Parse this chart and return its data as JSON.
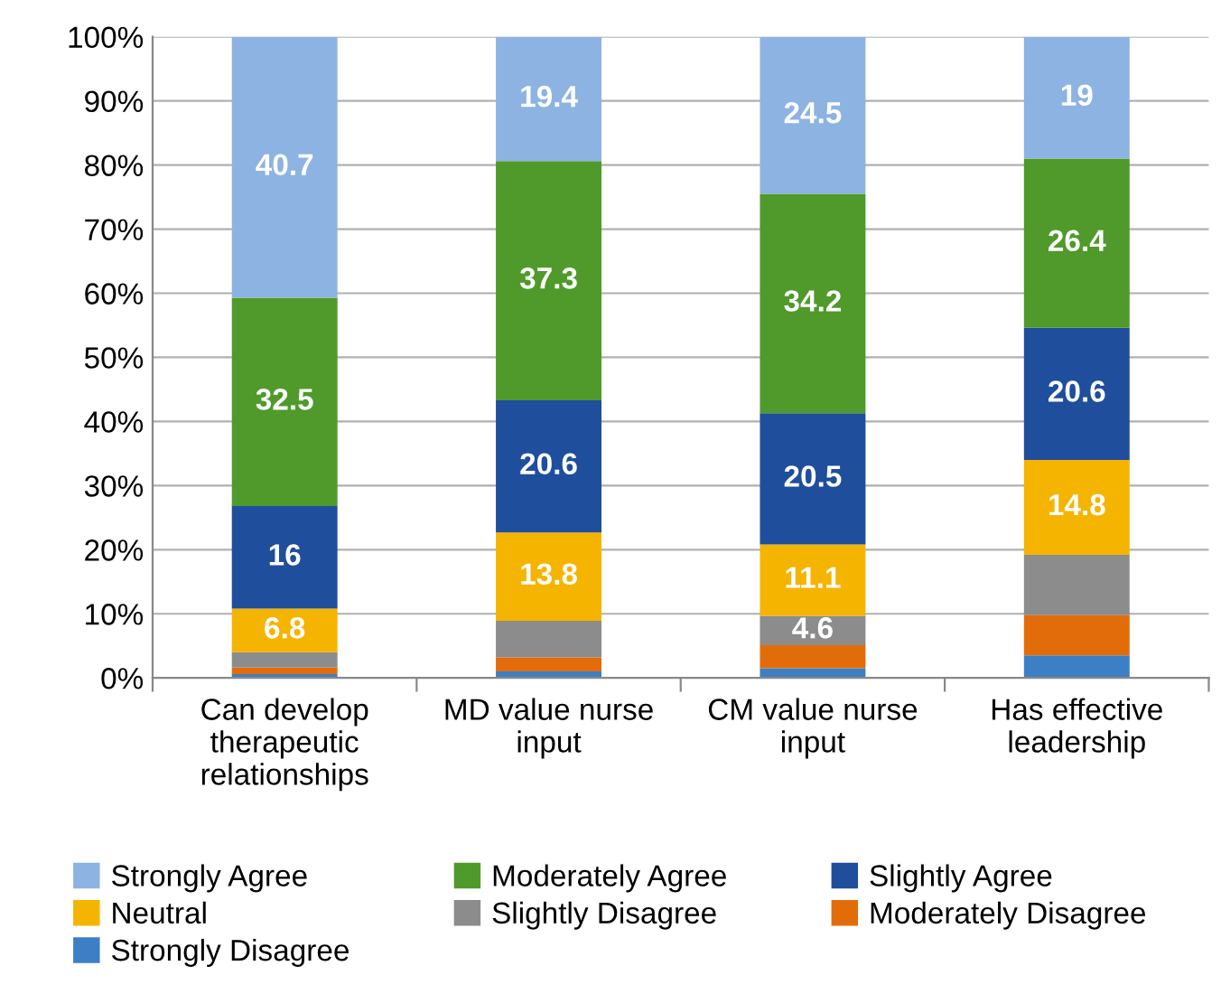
{
  "chart_data": {
    "type": "bar",
    "stacked": true,
    "categories": [
      "Can develop therapeutic relationships",
      "MD value nurse input",
      "CM value nurse input",
      "Has effective leadership"
    ],
    "series": [
      {
        "name": "Strongly Disagree",
        "color": "#3c7fc4",
        "values": [
          0.6,
          1.0,
          1.5,
          3.5
        ],
        "value_labels": [
          null,
          null,
          null,
          null
        ]
      },
      {
        "name": "Moderately Disagree",
        "color": "#e36c0a",
        "values": [
          1.0,
          2.2,
          3.6,
          6.3
        ],
        "value_labels": [
          null,
          null,
          null,
          null
        ]
      },
      {
        "name": "Slightly Disagree",
        "color": "#8c8c8c",
        "values": [
          2.4,
          5.7,
          4.6,
          9.4
        ],
        "value_labels": [
          null,
          null,
          "4.6",
          null
        ]
      },
      {
        "name": "Neutral",
        "color": "#f5b400",
        "values": [
          6.8,
          13.8,
          11.1,
          14.8
        ],
        "value_labels": [
          "6.8",
          "13.8",
          "11.1",
          "14.8"
        ]
      },
      {
        "name": "Slightly Agree",
        "color": "#1f4e9c",
        "values": [
          16,
          20.6,
          20.5,
          20.6
        ],
        "value_labels": [
          "16",
          "20.6",
          "20.5",
          "20.6"
        ]
      },
      {
        "name": "Moderately Agree",
        "color": "#4f9a2a",
        "values": [
          32.5,
          37.3,
          34.2,
          26.4
        ],
        "value_labels": [
          "32.5",
          "37.3",
          "34.2",
          "26.4"
        ]
      },
      {
        "name": "Strongly Agree",
        "color": "#8db3e2",
        "values": [
          40.7,
          19.4,
          24.5,
          19
        ],
        "value_labels": [
          "40.7",
          "19.4",
          "24.5",
          "19"
        ]
      }
    ],
    "ylim": [
      0,
      100
    ],
    "yticks": [
      {
        "value": 0,
        "label": "0%"
      },
      {
        "value": 10,
        "label": "10%"
      },
      {
        "value": 20,
        "label": "20%"
      },
      {
        "value": 30,
        "label": "30%"
      },
      {
        "value": 40,
        "label": "40%"
      },
      {
        "value": 50,
        "label": "50%"
      },
      {
        "value": 60,
        "label": "60%"
      },
      {
        "value": 70,
        "label": "70%"
      },
      {
        "value": 80,
        "label": "80%"
      },
      {
        "value": 90,
        "label": "90%"
      },
      {
        "value": 100,
        "label": "100%"
      }
    ],
    "grid": "y",
    "legend": "bottom"
  }
}
